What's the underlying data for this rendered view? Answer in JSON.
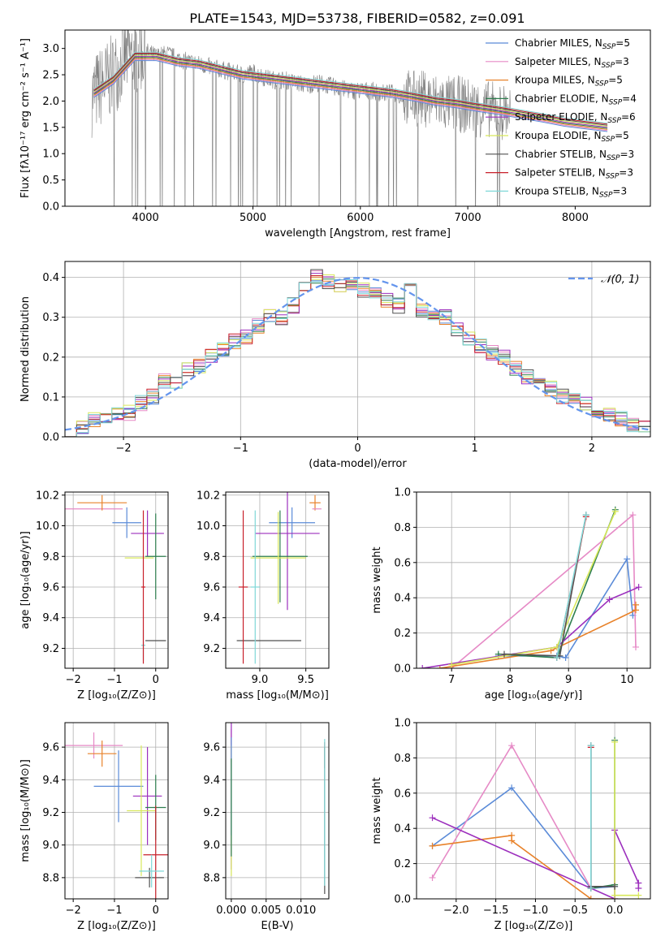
{
  "figure": {
    "title": "PLATE=1543, MJD=53738, FIBERID=0582, z=0.091",
    "series": [
      {
        "name": "Chabrier MILES",
        "nssp": 5,
        "color": "#5b8bd8"
      },
      {
        "name": "Salpeter MILES",
        "nssp": 3,
        "color": "#e68ac6"
      },
      {
        "name": "Kroupa MILES",
        "nssp": 5,
        "color": "#e8822a"
      },
      {
        "name": "Chabrier ELODIE",
        "nssp": 4,
        "color": "#2f7f4f"
      },
      {
        "name": "Salpeter ELODIE",
        "nssp": 6,
        "color": "#9c2fbd"
      },
      {
        "name": "Kroupa ELODIE",
        "nssp": 5,
        "color": "#d8e85a"
      },
      {
        "name": "Chabrier STELIB",
        "nssp": 3,
        "color": "#505050"
      },
      {
        "name": "Salpeter STELIB",
        "nssp": 3,
        "color": "#c8202a"
      },
      {
        "name": "Kroupa STELIB",
        "nssp": 3,
        "color": "#7fd8d8"
      }
    ]
  },
  "chart_data": [
    {
      "id": "spectrum",
      "type": "line",
      "xlabel": "wavelength [Angstrom, rest frame]",
      "ylabel": "Flux [fλ10⁻¹⁷ erg cm⁻² s⁻¹ A⁻¹]",
      "xlim": [
        3250,
        8700
      ],
      "ylim": [
        0,
        3.35
      ],
      "xticks": [
        4000,
        5000,
        6000,
        7000,
        8000
      ],
      "yticks": [
        0.0,
        0.5,
        1.0,
        1.5,
        2.0,
        2.5,
        3.0
      ],
      "legend_position": "right",
      "data_series": {
        "name": "data",
        "color": "#808080",
        "x": [
          3500,
          3600,
          3700,
          3800,
          3900,
          4000,
          4100,
          4200,
          4300,
          4400,
          4500,
          4600,
          4700,
          4800,
          4900,
          5000,
          5100,
          5200,
          5300,
          5400,
          5500,
          5600,
          5700,
          5800,
          5900,
          6000,
          6100,
          6200,
          6300,
          6400,
          6500,
          6600,
          6700,
          6800,
          6900,
          7000,
          7100,
          7200,
          7300,
          7400
        ],
        "y": [
          2.1,
          2.3,
          2.5,
          2.8,
          2.9,
          2.95,
          2.85,
          2.9,
          2.8,
          2.75,
          2.7,
          2.65,
          2.6,
          2.55,
          2.5,
          2.55,
          2.45,
          2.4,
          2.4,
          2.35,
          2.3,
          2.35,
          2.3,
          2.25,
          2.2,
          2.2,
          2.2,
          2.15,
          2.15,
          2.1,
          2.05,
          2.05,
          2.0,
          1.95,
          1.95,
          1.9,
          1.85,
          1.85,
          1.8,
          1.8
        ]
      },
      "model_series": {
        "x": [
          3520,
          3700,
          3900,
          4100,
          4300,
          4500,
          4700,
          4900,
          5100,
          5300,
          5500,
          5700,
          5900,
          6100,
          6300,
          6500,
          6700,
          6900,
          7100,
          7300,
          7500,
          7700,
          7900,
          8100,
          8300
        ],
        "y": [
          2.15,
          2.4,
          2.85,
          2.85,
          2.75,
          2.7,
          2.6,
          2.5,
          2.45,
          2.4,
          2.35,
          2.3,
          2.25,
          2.2,
          2.15,
          2.08,
          2.0,
          1.95,
          1.88,
          1.82,
          1.75,
          1.68,
          1.6,
          1.55,
          1.5
        ]
      }
    },
    {
      "id": "residuals",
      "type": "line",
      "xlabel": "(data-model)/error",
      "ylabel": "Normed distribution",
      "xlim": [
        -2.5,
        2.5
      ],
      "ylim": [
        0,
        0.44
      ],
      "xticks": [
        -2,
        -1,
        0,
        1,
        2
      ],
      "yticks": [
        0.0,
        0.1,
        0.2,
        0.3,
        0.4
      ],
      "legend": "𝒩(0, 1)",
      "legend_position": "top-right",
      "bin_width": 0.1,
      "hist_x": [
        -2.5,
        -2.4,
        -2.3,
        -2.2,
        -2.1,
        -2.0,
        -1.9,
        -1.8,
        -1.7,
        -1.6,
        -1.5,
        -1.4,
        -1.3,
        -1.2,
        -1.1,
        -1.0,
        -0.9,
        -0.8,
        -0.7,
        -0.6,
        -0.5,
        -0.4,
        -0.3,
        -0.2,
        -0.1,
        0.0,
        0.1,
        0.2,
        0.3,
        0.4,
        0.5,
        0.6,
        0.7,
        0.8,
        0.9,
        1.0,
        1.1,
        1.2,
        1.3,
        1.4,
        1.5,
        1.6,
        1.7,
        1.8,
        1.9,
        2.0,
        2.1,
        2.2,
        2.3,
        2.4
      ],
      "hist_y": [
        0.02,
        0.025,
        0.045,
        0.05,
        0.055,
        0.06,
        0.085,
        0.1,
        0.14,
        0.13,
        0.17,
        0.18,
        0.2,
        0.22,
        0.24,
        0.25,
        0.28,
        0.3,
        0.3,
        0.33,
        0.37,
        0.4,
        0.39,
        0.38,
        0.38,
        0.37,
        0.36,
        0.34,
        0.33,
        0.37,
        0.32,
        0.31,
        0.3,
        0.27,
        0.25,
        0.23,
        0.21,
        0.2,
        0.17,
        0.15,
        0.14,
        0.12,
        0.1,
        0.09,
        0.08,
        0.06,
        0.055,
        0.045,
        0.03,
        0.025
      ]
    },
    {
      "id": "age-vs-Z",
      "type": "scatter",
      "xlabel": "Z [log₁₀(Z/Z⊙)]",
      "ylabel": "age  [log₁₀(age/yr)]",
      "xlim": [
        -2.2,
        0.3
      ],
      "ylim": [
        9.07,
        10.22
      ],
      "xticks": [
        -2,
        -1,
        0
      ],
      "yticks": [
        9.2,
        9.4,
        9.6,
        9.8,
        10.0,
        10.2
      ],
      "points": [
        {
          "s": 1,
          "x": -1.5,
          "y": 10.11,
          "xerr": 0.7,
          "yerr": 0
        },
        {
          "s": 2,
          "x": -1.3,
          "y": 10.15,
          "xerr": 0.6,
          "yerr": 0.05
        },
        {
          "s": 0,
          "x": -0.7,
          "y": 10.02,
          "xerr": 0.35,
          "yerr": 0.1
        },
        {
          "s": 4,
          "x": -0.2,
          "y": 9.95,
          "xerr": 0.4,
          "yerr": 0.15
        },
        {
          "s": 5,
          "x": -0.4,
          "y": 9.79,
          "xerr": 0.35,
          "yerr": 0
        },
        {
          "s": 3,
          "x": 0.0,
          "y": 9.8,
          "xerr": 0.25,
          "yerr": 0.28
        },
        {
          "s": 6,
          "x": 0.0,
          "y": 9.25,
          "xerr": 0.25,
          "yerr": 0
        },
        {
          "s": 8,
          "x": -0.3,
          "y": 9.22,
          "xerr": 0.05,
          "yerr": 0.1
        },
        {
          "s": 7,
          "x": -0.3,
          "y": 9.6,
          "xerr": 0.05,
          "yerr": 0.5
        }
      ]
    },
    {
      "id": "age-vs-mass",
      "type": "scatter",
      "xlabel": "mass [log₁₀(M/M⊙)]",
      "ylabel": "",
      "xlim": [
        8.63,
        9.75
      ],
      "ylim": [
        9.07,
        10.22
      ],
      "xticks": [
        9.0,
        9.5
      ],
      "yticks": [
        9.2,
        9.4,
        9.6,
        9.8,
        10.0,
        10.2
      ],
      "points": [
        {
          "s": 2,
          "x": 9.6,
          "y": 10.15,
          "xerr": 0.06,
          "yerr": 0.05
        },
        {
          "s": 1,
          "x": 9.62,
          "y": 10.11,
          "xerr": 0.05,
          "yerr": 0
        },
        {
          "s": 0,
          "x": 9.35,
          "y": 10.02,
          "xerr": 0.25,
          "yerr": 0.1
        },
        {
          "s": 4,
          "x": 9.3,
          "y": 9.95,
          "xerr": 0.35,
          "yerr": 0.5
        },
        {
          "s": 3,
          "x": 9.22,
          "y": 9.8,
          "xerr": 0.3,
          "yerr": 0.3
        },
        {
          "s": 5,
          "x": 9.2,
          "y": 9.79,
          "xerr": 0.3,
          "yerr": 0.3
        },
        {
          "s": 6,
          "x": 9.1,
          "y": 9.25,
          "xerr": 0.35,
          "yerr": 0
        },
        {
          "s": 7,
          "x": 8.82,
          "y": 9.6,
          "xerr": 0.05,
          "yerr": 0.5
        },
        {
          "s": 8,
          "x": 8.95,
          "y": 9.6,
          "xerr": 0.05,
          "yerr": 0.5
        }
      ]
    },
    {
      "id": "weight-vs-age",
      "type": "line",
      "xlabel": "age  [log₁₀(age/yr)]",
      "ylabel": "mass weight",
      "xlim": [
        6.4,
        10.4
      ],
      "ylim": [
        0,
        1.0
      ],
      "xticks": [
        7,
        8,
        9,
        10
      ],
      "yticks": [
        0.0,
        0.2,
        0.4,
        0.6,
        0.8,
        1.0
      ],
      "series_points": [
        {
          "s": 0,
          "x": [
            7.8,
            8.8,
            8.95,
            10.0,
            10.1
          ],
          "y": [
            0.07,
            0.07,
            0.06,
            0.62,
            0.3
          ]
        },
        {
          "s": 1,
          "x": [
            7.0,
            10.1,
            10.15
          ],
          "y": [
            0.0,
            0.87,
            0.12
          ]
        },
        {
          "s": 2,
          "x": [
            6.8,
            8.7,
            10.15,
            10.15
          ],
          "y": [
            0.0,
            0.1,
            0.33,
            0.36
          ]
        },
        {
          "s": 3,
          "x": [
            7.8,
            8.8,
            9.8
          ],
          "y": [
            0.08,
            0.06,
            0.9
          ]
        },
        {
          "s": 4,
          "x": [
            6.5,
            8.8,
            9.7,
            10.2
          ],
          "y": [
            0.0,
            0.12,
            0.39,
            0.46
          ]
        },
        {
          "s": 5,
          "x": [
            7.0,
            8.8,
            9.8
          ],
          "y": [
            0.02,
            0.12,
            0.89
          ]
        },
        {
          "s": 6,
          "x": [
            7.9,
            8.85,
            9.3
          ],
          "y": [
            0.08,
            0.07,
            0.87
          ]
        },
        {
          "s": 7,
          "x": [
            8.8,
            9.3
          ],
          "y": [
            0.06,
            0.86
          ]
        },
        {
          "s": 8,
          "x": [
            8.8,
            9.3
          ],
          "y": [
            0.06,
            0.87
          ]
        }
      ]
    },
    {
      "id": "mass-vs-Z",
      "type": "scatter",
      "xlabel": "Z [log₁₀(Z/Z⊙)]",
      "ylabel": "mass [log₁₀(M/M⊙)]",
      "xlim": [
        -2.2,
        0.3
      ],
      "ylim": [
        8.67,
        9.75
      ],
      "xticks": [
        -2,
        -1,
        0
      ],
      "yticks": [
        8.8,
        9.0,
        9.2,
        9.4,
        9.6
      ],
      "points": [
        {
          "s": 1,
          "x": -1.5,
          "y": 9.61,
          "xerr": 0.7,
          "yerr": 0.08
        },
        {
          "s": 2,
          "x": -1.3,
          "y": 9.56,
          "xerr": 0.35,
          "yerr": 0.08
        },
        {
          "s": 0,
          "x": -0.9,
          "y": 9.36,
          "xerr": 0.6,
          "yerr": 0.22
        },
        {
          "s": 4,
          "x": -0.2,
          "y": 9.3,
          "xerr": 0.35,
          "yerr": 0.3
        },
        {
          "s": 5,
          "x": -0.35,
          "y": 9.21,
          "xerr": 0.35,
          "yerr": 0.4
        },
        {
          "s": 3,
          "x": 0.0,
          "y": 9.23,
          "xerr": 0.25,
          "yerr": 0.2
        },
        {
          "s": 6,
          "x": -0.15,
          "y": 8.8,
          "xerr": 0.35,
          "yerr": 0.06
        },
        {
          "s": 7,
          "x": 0.0,
          "y": 8.94,
          "xerr": 0.3,
          "yerr": 0.3
        },
        {
          "s": 8,
          "x": -0.1,
          "y": 8.84,
          "xerr": 0.3,
          "yerr": 0.1
        }
      ]
    },
    {
      "id": "mass-vs-EBV",
      "type": "scatter",
      "xlabel": "E(B-V)",
      "ylabel": "",
      "xlim": [
        -0.0008,
        0.014
      ],
      "ylim": [
        8.67,
        9.75
      ],
      "xticks": [
        0.0,
        0.005,
        0.01
      ],
      "xticklabels": [
        "0.000",
        "0.005",
        "0.010"
      ],
      "yticks": [
        8.8,
        9.0,
        9.2,
        9.4,
        9.6
      ],
      "points": [
        {
          "s": 1,
          "x": 0.0,
          "y": 9.61,
          "xerr": 0,
          "yerr": 0.1
        },
        {
          "s": 2,
          "x": 0.0,
          "y": 9.56,
          "xerr": 0,
          "yerr": 0.1
        },
        {
          "s": 4,
          "x": 0.0,
          "y": 9.3,
          "xerr": 0,
          "yerr": 0.45
        },
        {
          "s": 5,
          "x": 0.0,
          "y": 9.21,
          "xerr": 0,
          "yerr": 0.4
        },
        {
          "s": 0,
          "x": 0.0,
          "y": 9.36,
          "xerr": 0,
          "yerr": 0.3
        },
        {
          "s": 3,
          "x": 0.0,
          "y": 9.23,
          "xerr": 0,
          "yerr": 0.3
        },
        {
          "s": 7,
          "x": 0.0134,
          "y": 9.55,
          "xerr": 0,
          "yerr": 0.08
        },
        {
          "s": 6,
          "x": 0.0134,
          "y": 9.15,
          "xerr": 0,
          "yerr": 0.45
        },
        {
          "s": 8,
          "x": 0.0134,
          "y": 9.2,
          "xerr": 0,
          "yerr": 0.45
        }
      ]
    },
    {
      "id": "weight-vs-Z",
      "type": "line",
      "xlabel": "Z [log₁₀(Z/Z⊙)]",
      "ylabel": "mass weight",
      "xlim": [
        -2.5,
        0.45
      ],
      "ylim": [
        0,
        1.0
      ],
      "xticks": [
        -2.0,
        -1.5,
        -1.0,
        -0.5,
        0.0
      ],
      "xticklabels": [
        "−2.0",
        "−1.5",
        "−1.0",
        "−0.5",
        "0.0"
      ],
      "yticks": [
        0.0,
        0.2,
        0.4,
        0.6,
        0.8,
        1.0
      ],
      "series_points": [
        {
          "s": 0,
          "x": [
            -2.3,
            -1.3,
            -0.3,
            0.0
          ],
          "y": [
            0.3,
            0.63,
            0.06,
            0.07
          ]
        },
        {
          "s": 1,
          "x": [
            -2.3,
            -1.3,
            -0.3
          ],
          "y": [
            0.12,
            0.87,
            0.06
          ]
        },
        {
          "s": 2,
          "x": [
            -2.3,
            -1.3,
            -1.3,
            -0.3,
            0.0
          ],
          "y": [
            0.3,
            0.36,
            0.33,
            0.0,
            0.0
          ]
        },
        {
          "s": 3,
          "x": [
            -0.3,
            0.0,
            0.0
          ],
          "y": [
            0.06,
            0.08,
            0.9
          ]
        },
        {
          "s": 4,
          "x": [
            -2.3,
            0.0,
            0.0,
            0.3,
            0.3
          ],
          "y": [
            0.46,
            0.0,
            0.39,
            0.09,
            0.06
          ]
        },
        {
          "s": 5,
          "x": [
            0.0,
            0.0,
            0.3
          ],
          "y": [
            0.89,
            0.02,
            0.02
          ]
        },
        {
          "s": 6,
          "x": [
            -0.3,
            -0.3,
            0.0
          ],
          "y": [
            0.87,
            0.07,
            0.07
          ]
        },
        {
          "s": 7,
          "x": [
            -0.3,
            -0.3
          ],
          "y": [
            0.86,
            0.06
          ]
        },
        {
          "s": 8,
          "x": [
            -0.3,
            -0.3
          ],
          "y": [
            0.87,
            0.06
          ]
        }
      ]
    }
  ]
}
